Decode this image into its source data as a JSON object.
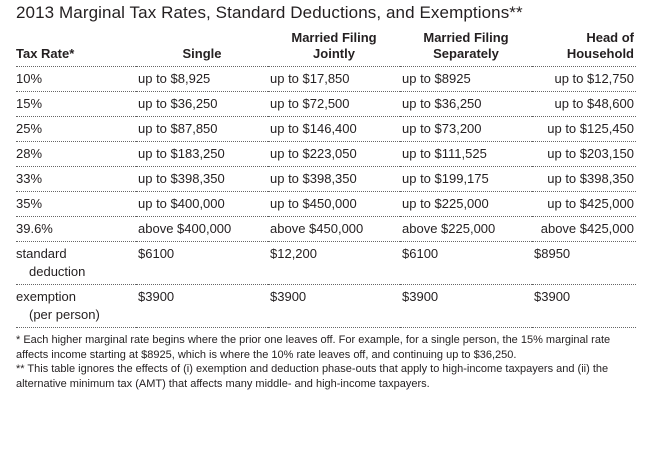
{
  "title": "2013 Marginal Tax Rates, Standard Deductions, and Exemptions**",
  "columns": [
    "Tax Rate*",
    "Single",
    "Married Filing\nJointly",
    "Married Filing\nSeparately",
    "Head of\nHousehold"
  ],
  "rows": [
    {
      "label": "10%",
      "single": "up to $8,925",
      "joint": "up to $17,850",
      "separate": "up to $8925",
      "head": "up to $12,750"
    },
    {
      "label": "15%",
      "single": "up to $36,250",
      "joint": "up to $72,500",
      "separate": "up to $36,250",
      "head": "up to $48,600"
    },
    {
      "label": "25%",
      "single": "up to $87,850",
      "joint": "up to $146,400",
      "separate": "up to $73,200",
      "head": "up to $125,450"
    },
    {
      "label": "28%",
      "single": "up to $183,250",
      "joint": "up to $223,050",
      "separate": "up to $111,525",
      "head": "up to $203,150"
    },
    {
      "label": "33%",
      "single": "up to $398,350",
      "joint": "up to $398,350",
      "separate": "up to $199,175",
      "head": "up to $398,350"
    },
    {
      "label": "35%",
      "single": "up to $400,000",
      "joint": "up to $450,000",
      "separate": "up to $225,000",
      "head": "up to $425,000"
    },
    {
      "label": "39.6%",
      "single": "above $400,000",
      "joint": "above $450,000",
      "separate": "above $225,000",
      "head": "above $425,000"
    }
  ],
  "standard_deduction": {
    "label_line1": "standard",
    "label_line2": "deduction",
    "single": "$6100",
    "joint": "$12,200",
    "separate": "$6100",
    "head": "$8950"
  },
  "exemption": {
    "label_line1": "exemption",
    "label_line2": "(per person)",
    "single": "$3900",
    "joint": "$3900",
    "separate": "$3900",
    "head": "$3900"
  },
  "footnotes": [
    "* Each higher marginal rate begins where the prior one leaves off. For example, for a single person, the 15% marginal rate affects income starting at $8925, which is where the 10% rate leaves off, and continuing up to $36,250.",
    "** This table ignores the effects of (i) exemption and deduction phase-outs that apply to high-income taxpayers and (ii) the alternative minimum tax (AMT) that affects many middle- and high-income taxpayers."
  ]
}
